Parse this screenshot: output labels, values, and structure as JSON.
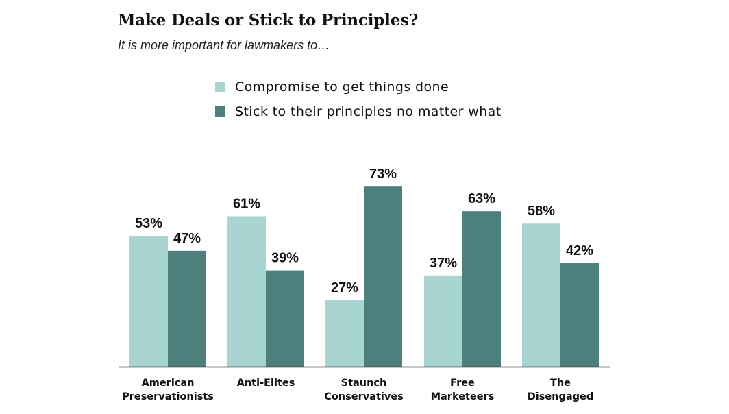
{
  "chart_data": {
    "type": "bar",
    "title": "Make Deals or Stick to Principles?",
    "subtitle": "It is more important for lawmakers to…",
    "categories": [
      [
        "American",
        "Preservationists"
      ],
      [
        "Anti-Elites"
      ],
      [
        "Staunch",
        "Conservatives"
      ],
      [
        "Free",
        "Marketeers"
      ],
      [
        "The",
        "Disengaged"
      ]
    ],
    "series": [
      {
        "name": "Compromise to get things done",
        "values": [
          53,
          61,
          27,
          37,
          58
        ],
        "color": "#a8d5d1"
      },
      {
        "name": "Stick to their principles no matter what",
        "values": [
          47,
          39,
          73,
          63,
          42
        ],
        "color": "#4d7f7c"
      }
    ],
    "value_suffix": "%",
    "ylim": [
      0,
      100
    ],
    "grid": false,
    "legend_position": "top"
  }
}
